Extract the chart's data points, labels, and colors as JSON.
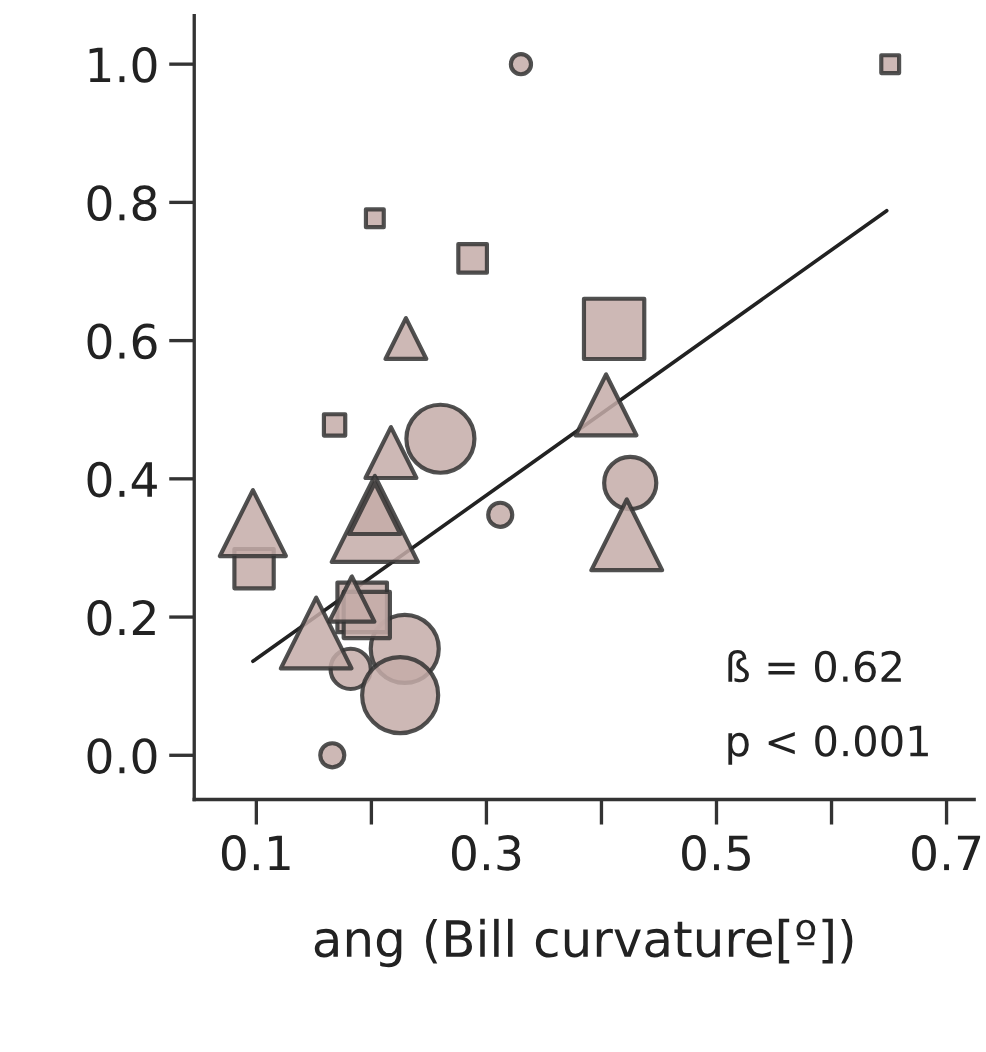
{
  "chart_data": {
    "type": "bubble",
    "xlabel": "ang (Bill curvature[º])",
    "ylabel": null,
    "xlim": [
      0.046,
      0.724
    ],
    "ylim": [
      -0.064,
      1.07
    ],
    "xticks": [
      0.1,
      {
        "value": 0.2,
        "label": null
      },
      0.3,
      {
        "value": 0.4,
        "label": null
      },
      0.5,
      {
        "value": 0.6,
        "label": null
      },
      0.7
    ],
    "yticks": [
      {
        "value": 0,
        "label": "0.0"
      },
      {
        "value": 0.2,
        "label": "0.2"
      },
      {
        "value": 0.4,
        "label": "0.4"
      },
      {
        "value": 0.6,
        "label": "0.6"
      },
      {
        "value": 0.8,
        "label": "0.8"
      },
      {
        "value": 1.0,
        "label": "1.0"
      }
    ],
    "grid": false,
    "legend": false,
    "annotations": [
      "ß = 0.62",
      "p < 0.001"
    ],
    "series": [
      {
        "marker": "circle",
        "color": "#c4aca8",
        "x": [
          0.33,
          0.425,
          0.26,
          0.312,
          0.229,
          0.182,
          0.225,
          0.166
        ],
        "values": [
          1.0,
          0.394,
          0.458,
          0.348,
          0.154,
          0.125,
          0.087,
          0.0
        ],
        "sizes": [
          0.07,
          0.47,
          0.8,
          0.1,
          0.8,
          0.28,
          1,
          0.1
        ]
      },
      {
        "marker": "square",
        "color": "#c4aca8",
        "x": [
          0.651,
          0.203,
          0.288,
          0.411,
          0.168,
          0.098,
          0.192,
          0.196
        ],
        "values": [
          1.0,
          0.777,
          0.719,
          0.617,
          0.478,
          0.27,
          0.214,
          0.203
        ],
        "sizes": [
          0.07,
          0.07,
          0.18,
          0.8,
          0.1,
          0.34,
          0.54,
          0.47
        ]
      },
      {
        "marker": "triangle",
        "color": "#c4aca8",
        "x": [
          0.23,
          0.217,
          0.097,
          0.203,
          0.203,
          0.152,
          0.183,
          0.404,
          0.422
        ],
        "values": [
          0.603,
          0.438,
          0.336,
          0.342,
          0.357,
          0.177,
          0.226,
          0.507,
          0.319
        ],
        "sizes": [
          0.18,
          0.28,
          0.47,
          0.8,
          0.28,
          0.54,
          0.22,
          0.4,
          0.54
        ]
      },
      {
        "type": "line",
        "color": "#222222",
        "x": [
          0.097,
          0.648
        ],
        "values": [
          0.136,
          0.788
        ]
      }
    ]
  }
}
